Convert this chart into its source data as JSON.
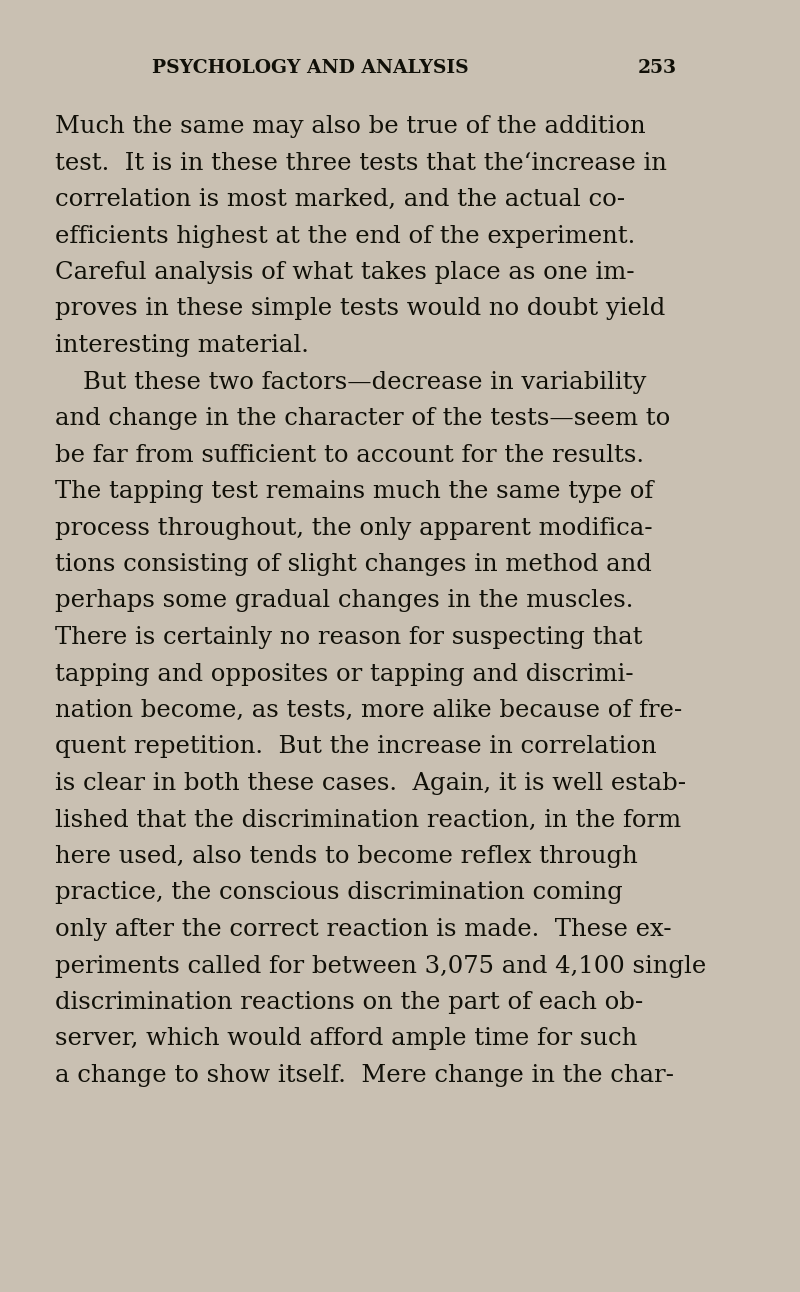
{
  "background_color": "#c9c0b2",
  "page_width": 8.0,
  "page_height": 12.92,
  "dpi": 100,
  "header_text": "PSYCHOLOGY AND ANALYSIS",
  "header_num": "253",
  "header_font_size": 13.5,
  "body_font_size": 17.5,
  "text_color": "#111008",
  "paragraphs": [
    {
      "indent": false,
      "lines": [
        "Much the same may also be true of the addition",
        "test.  It is in these three tests that the‘increase in",
        "correlation is most marked, and the actual co-",
        "efficients highest at the end of the experiment.",
        "Careful analysis of what takes place as one im-",
        "proves in these simple tests would no doubt yield",
        "interesting material."
      ]
    },
    {
      "indent": true,
      "lines": [
        "But these two factors—decrease in variability",
        "and change in the character of the tests—seem to",
        "be far from sufficient to account for the results.",
        "The tapping test remains much the same type of",
        "process throughout, the only apparent modifica-",
        "tions consisting of slight changes in method and",
        "perhaps some gradual changes in the muscles.",
        "There is certainly no reason for suspecting that",
        "tapping and opposites or tapping and discrimi-",
        "nation become, as tests, more alike because of fre-",
        "quent repetition.  But the increase in correlation",
        "is clear in both these cases.  Again, it is well estab-",
        "lished that the discrimination reaction, in the form",
        "here used, also tends to become reflex through",
        "practice, the conscious discrimination coming",
        "only after the correct reaction is made.  These ex-",
        "periments called for between 3,075 and 4,100 single",
        "discrimination reactions on the part of each ob-",
        "server, which would afford ample time for such",
        "a change to show itself.  Mere change in the char-"
      ]
    }
  ]
}
